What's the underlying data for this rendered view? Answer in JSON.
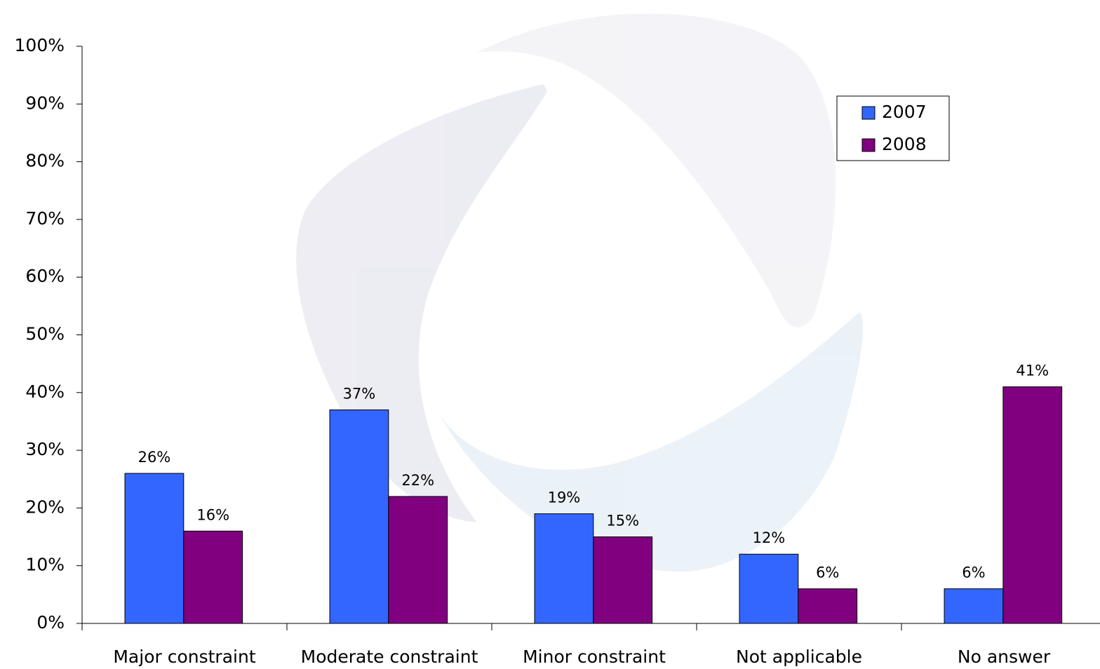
{
  "chart_data": {
    "type": "bar",
    "categories": [
      "Major constraint",
      "Moderate constraint",
      "Minor constraint",
      "Not applicable",
      "No answer"
    ],
    "series": [
      {
        "name": "2007",
        "color": "#3366ff",
        "values": [
          26,
          37,
          19,
          12,
          6
        ],
        "value_labels": [
          "26%",
          "37%",
          "19%",
          "12%",
          "6%"
        ]
      },
      {
        "name": "2008",
        "color": "#800080",
        "values": [
          16,
          22,
          15,
          6,
          41
        ],
        "value_labels": [
          "16%",
          "22%",
          "15%",
          "6%",
          "41%"
        ]
      }
    ],
    "ylim": [
      0,
      100
    ],
    "yticks": [
      {
        "value": 0,
        "label": "0%"
      },
      {
        "value": 10,
        "label": "10%"
      },
      {
        "value": 20,
        "label": "20%"
      },
      {
        "value": 30,
        "label": "30%"
      },
      {
        "value": 40,
        "label": "40%"
      },
      {
        "value": 50,
        "label": "50%"
      },
      {
        "value": 60,
        "label": "60%"
      },
      {
        "value": 70,
        "label": "70%"
      },
      {
        "value": 80,
        "label": "80%"
      },
      {
        "value": 90,
        "label": "90%"
      },
      {
        "value": 100,
        "label": "100%"
      }
    ],
    "grid": false,
    "legend": "top-right"
  }
}
